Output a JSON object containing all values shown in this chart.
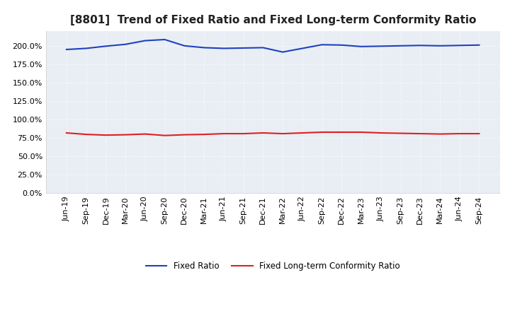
{
  "title": "[8801]  Trend of Fixed Ratio and Fixed Long-term Conformity Ratio",
  "x_labels": [
    "Jun-19",
    "Sep-19",
    "Dec-19",
    "Mar-20",
    "Jun-20",
    "Sep-20",
    "Dec-20",
    "Mar-21",
    "Jun-21",
    "Sep-21",
    "Dec-21",
    "Mar-22",
    "Jun-22",
    "Sep-22",
    "Dec-22",
    "Mar-23",
    "Jun-23",
    "Sep-23",
    "Dec-23",
    "Mar-24",
    "Jun-24",
    "Sep-24"
  ],
  "fixed_ratio": [
    195.0,
    196.5,
    199.5,
    202.0,
    207.0,
    208.5,
    200.0,
    197.5,
    196.5,
    197.0,
    197.5,
    191.5,
    196.5,
    201.5,
    201.0,
    199.0,
    199.5,
    200.0,
    200.5,
    200.0,
    200.5,
    201.0
  ],
  "fixed_lt_ratio": [
    81.5,
    79.5,
    78.5,
    79.0,
    80.0,
    78.0,
    79.0,
    79.5,
    80.5,
    80.5,
    81.5,
    80.5,
    81.5,
    82.5,
    82.5,
    82.5,
    81.5,
    81.0,
    80.5,
    80.0,
    80.5,
    80.5
  ],
  "fixed_ratio_color": "#2040C0",
  "fixed_lt_ratio_color": "#E02020",
  "ylim": [
    0,
    220
  ],
  "yticks": [
    0,
    25,
    50,
    75,
    100,
    125,
    150,
    175,
    200
  ],
  "background_color": "#FFFFFF",
  "plot_bg_color": "#E8EEF4",
  "grid_color": "#FFFFFF",
  "title_fontsize": 11,
  "tick_fontsize": 8,
  "legend_fixed_ratio": "Fixed Ratio",
  "legend_fixed_lt": "Fixed Long-term Conformity Ratio"
}
